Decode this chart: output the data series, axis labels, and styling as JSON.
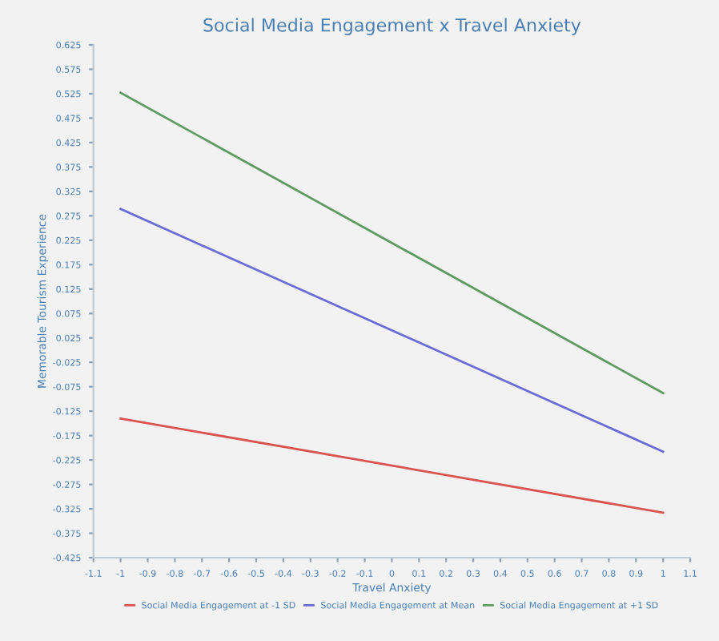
{
  "chart_data": {
    "type": "line",
    "title": "Social Media Engagement x Travel Anxiety",
    "xlabel": "Travel Anxiety",
    "ylabel": "Memorable Tourism Experience",
    "x": [
      -1,
      1
    ],
    "series": [
      {
        "name": "Social Media Engagement at -1 SD",
        "color": "#d9544f",
        "values": [
          -0.14,
          -0.333
        ]
      },
      {
        "name": "Social Media Engagement at Mean",
        "color": "#6b6bd6",
        "values": [
          0.289,
          -0.208
        ]
      },
      {
        "name": "Social Media Engagement at +1 SD",
        "color": "#5e9a62",
        "values": [
          0.527,
          -0.088
        ]
      }
    ],
    "xlim": [
      -1.1,
      1.1
    ],
    "xticks": [
      -1.1,
      -1,
      -0.9,
      -0.8,
      -0.7,
      -0.6,
      -0.5,
      -0.4,
      -0.3,
      -0.2,
      -0.1,
      0,
      0.1,
      0.2,
      0.3,
      0.4,
      0.5,
      0.6,
      0.7,
      0.8,
      0.9,
      1,
      1.1
    ],
    "ylim": [
      -0.425,
      0.625
    ],
    "yticks": [
      -0.425,
      -0.375,
      -0.325,
      -0.275,
      -0.225,
      -0.175,
      -0.125,
      -0.075,
      -0.025,
      0.025,
      0.075,
      0.125,
      0.175,
      0.225,
      0.275,
      0.325,
      0.375,
      0.425,
      0.475,
      0.525,
      0.575,
      0.625
    ],
    "grid": false,
    "legend": "bottom",
    "marker": "none",
    "line_style": "solid"
  }
}
